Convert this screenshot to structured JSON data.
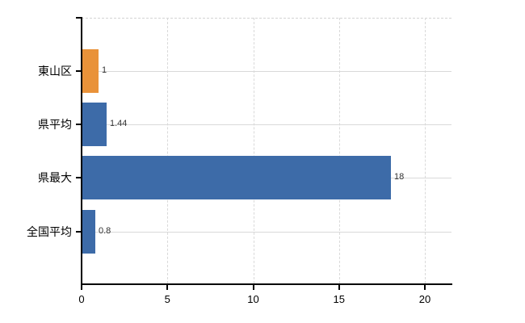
{
  "chart_data": {
    "type": "bar",
    "orientation": "horizontal",
    "title": "",
    "xlabel": "",
    "ylabel": "",
    "categories": [
      "東山区",
      "県平均",
      "県最大",
      "全国平均"
    ],
    "values": [
      1,
      1.44,
      18,
      0.8
    ],
    "value_labels": [
      "1",
      "1.44",
      "18",
      "0.8"
    ],
    "bar_colors": [
      "#e99239",
      "#3d6ba8",
      "#3d6ba8",
      "#3d6ba8"
    ],
    "x_ticks": [
      0,
      5,
      10,
      15,
      20
    ],
    "x_tick_labels": [
      "0",
      "5",
      "10",
      "15",
      "20"
    ],
    "xlim": [
      0,
      21.6
    ],
    "grid": true,
    "legend": false,
    "colors": {
      "bar_blue": "#3d6ba8",
      "bar_orange": "#e99239",
      "gridline": "#d9d9d9",
      "axis": "#000000",
      "value_label_text": "#333333",
      "tick_label_text": "#000000",
      "background": "#ffffff"
    }
  }
}
